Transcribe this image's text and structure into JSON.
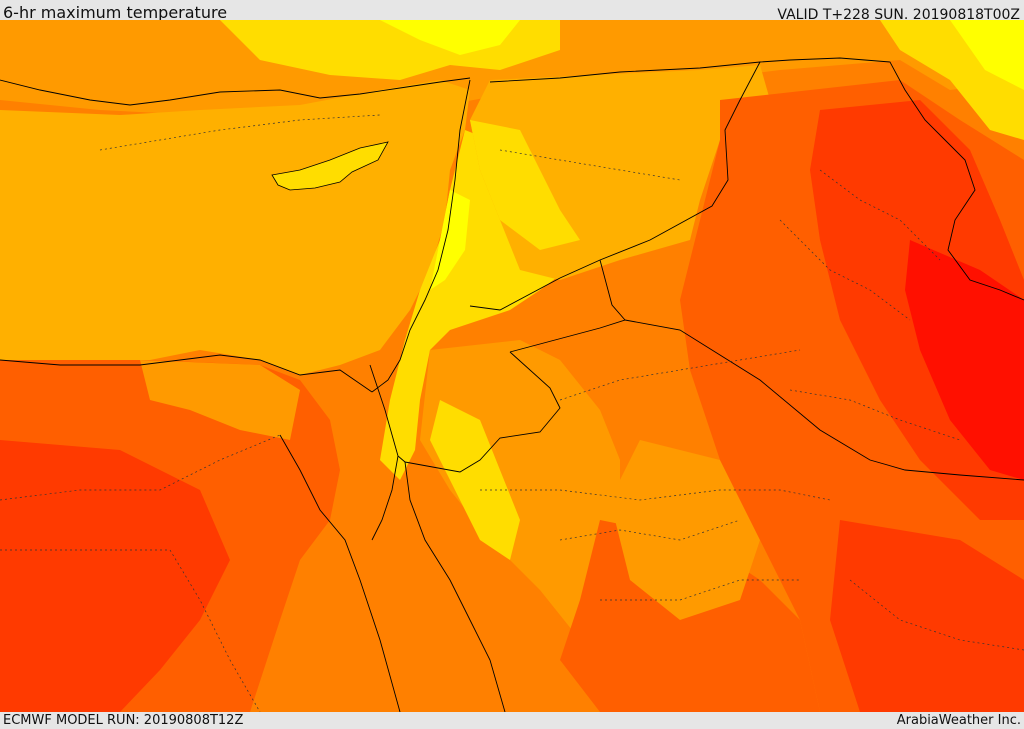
{
  "header": {
    "title": "6-hr maximum temperature",
    "valid": "VALID T+228 SUN. 20190818T00Z"
  },
  "footer": {
    "model_run": "ECMWF MODEL RUN: 20190808T12Z",
    "credit": "ArabiaWeather Inc."
  },
  "colors": {
    "sea": "#ffb000",
    "light_yellow": "#ffff00",
    "yellow": "#ffdd00",
    "orange_light": "#ff9a00",
    "orange": "#ff8000",
    "orange_dark": "#ff5f00",
    "red": "#ff3a00",
    "red_deep": "#ff1000",
    "border": "#000000"
  }
}
